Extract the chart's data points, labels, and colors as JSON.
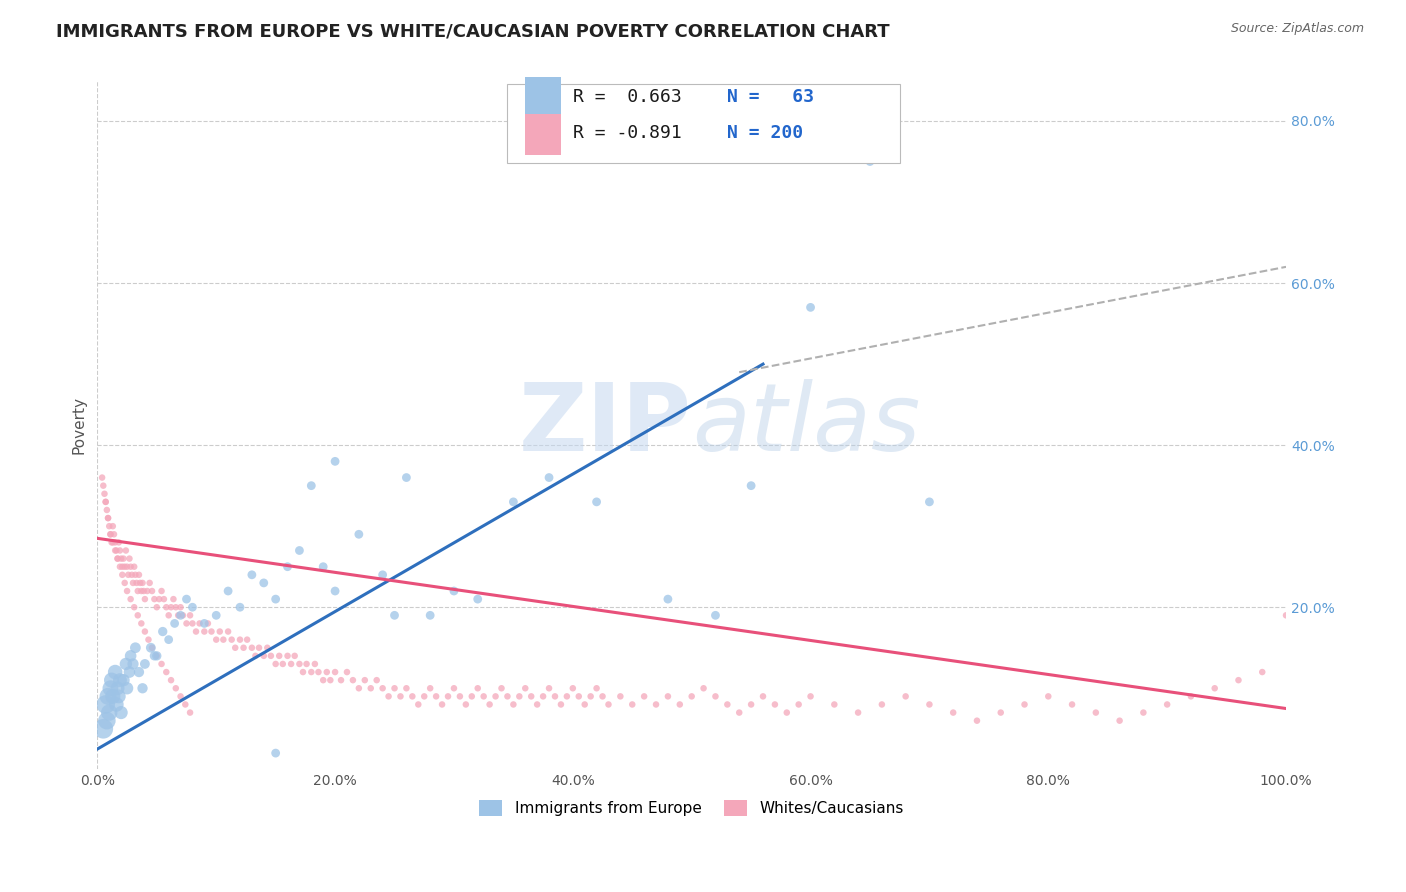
{
  "title": "IMMIGRANTS FROM EUROPE VS WHITE/CAUCASIAN POVERTY CORRELATION CHART",
  "source": "Source: ZipAtlas.com",
  "ylabel": "Poverty",
  "xlim": [
    0,
    1.0
  ],
  "ylim": [
    0,
    0.85
  ],
  "xticks": [
    0.0,
    0.2,
    0.4,
    0.6,
    0.8,
    1.0
  ],
  "xticklabels": [
    "0.0%",
    "20.0%",
    "40.0%",
    "60.0%",
    "80.0%",
    "100.0%"
  ],
  "ytick_positions": [
    0.2,
    0.4,
    0.6,
    0.8
  ],
  "yticklabels": [
    "20.0%",
    "40.0%",
    "60.0%",
    "80.0%"
  ],
  "legend_r1": "R =  0.663",
  "legend_n1": "N =   63",
  "legend_r2": "R = -0.891",
  "legend_n2": "N = 200",
  "blue_color": "#9dc3e6",
  "pink_color": "#f4a7ba",
  "blue_line_color": "#2e6fbd",
  "pink_line_color": "#e8507a",
  "dashed_line_color": "#b0b0b0",
  "title_fontsize": 13,
  "axis_fontsize": 11,
  "tick_fontsize": 10,
  "watermark_zip": "ZIP",
  "watermark_atlas": "atlas",
  "background_color": "#ffffff",
  "grid_color": "#cccccc",
  "blue_trendline": {
    "x": [
      0.0,
      0.56
    ],
    "y": [
      0.025,
      0.5
    ]
  },
  "dashed_trendline": {
    "x": [
      0.54,
      1.0
    ],
    "y": [
      0.49,
      0.62
    ]
  },
  "pink_trendline": {
    "x": [
      0.0,
      1.0
    ],
    "y": [
      0.285,
      0.075
    ]
  },
  "blue_scatter_x": [
    0.005,
    0.007,
    0.008,
    0.009,
    0.01,
    0.011,
    0.012,
    0.013,
    0.015,
    0.016,
    0.017,
    0.018,
    0.019,
    0.02,
    0.022,
    0.024,
    0.025,
    0.027,
    0.028,
    0.03,
    0.032,
    0.035,
    0.038,
    0.04,
    0.045,
    0.048,
    0.05,
    0.055,
    0.06,
    0.065,
    0.07,
    0.075,
    0.08,
    0.09,
    0.1,
    0.11,
    0.12,
    0.13,
    0.14,
    0.15,
    0.16,
    0.17,
    0.18,
    0.19,
    0.2,
    0.22,
    0.24,
    0.26,
    0.28,
    0.3,
    0.32,
    0.35,
    0.38,
    0.42,
    0.55,
    0.7,
    0.52,
    0.48,
    0.6,
    0.65,
    0.2,
    0.25,
    0.15
  ],
  "blue_scatter_y": [
    0.05,
    0.08,
    0.06,
    0.09,
    0.07,
    0.1,
    0.11,
    0.09,
    0.12,
    0.08,
    0.1,
    0.09,
    0.11,
    0.07,
    0.11,
    0.13,
    0.1,
    0.12,
    0.14,
    0.13,
    0.15,
    0.12,
    0.1,
    0.13,
    0.15,
    0.14,
    0.14,
    0.17,
    0.16,
    0.18,
    0.19,
    0.21,
    0.2,
    0.18,
    0.19,
    0.22,
    0.2,
    0.24,
    0.23,
    0.21,
    0.25,
    0.27,
    0.35,
    0.25,
    0.22,
    0.29,
    0.24,
    0.36,
    0.19,
    0.22,
    0.21,
    0.33,
    0.36,
    0.33,
    0.35,
    0.33,
    0.19,
    0.21,
    0.57,
    0.75,
    0.38,
    0.19,
    0.02
  ],
  "blue_scatter_sizes": [
    200,
    180,
    160,
    150,
    140,
    130,
    120,
    120,
    110,
    110,
    100,
    100,
    100,
    90,
    80,
    80,
    80,
    70,
    70,
    65,
    60,
    55,
    55,
    50,
    50,
    45,
    45,
    45,
    40,
    40,
    40,
    40,
    40,
    40,
    40,
    40,
    40,
    40,
    40,
    40,
    40,
    40,
    40,
    40,
    40,
    40,
    40,
    40,
    40,
    40,
    40,
    40,
    40,
    40,
    40,
    40,
    40,
    40,
    40,
    40,
    40,
    40,
    40
  ],
  "pink_scatter_x": [
    0.004,
    0.006,
    0.007,
    0.008,
    0.009,
    0.01,
    0.011,
    0.012,
    0.013,
    0.014,
    0.015,
    0.016,
    0.017,
    0.018,
    0.019,
    0.02,
    0.021,
    0.022,
    0.023,
    0.024,
    0.025,
    0.026,
    0.027,
    0.028,
    0.029,
    0.03,
    0.031,
    0.032,
    0.033,
    0.034,
    0.035,
    0.036,
    0.037,
    0.038,
    0.039,
    0.04,
    0.042,
    0.044,
    0.046,
    0.048,
    0.05,
    0.052,
    0.054,
    0.056,
    0.058,
    0.06,
    0.062,
    0.064,
    0.066,
    0.068,
    0.07,
    0.072,
    0.075,
    0.078,
    0.08,
    0.083,
    0.086,
    0.09,
    0.093,
    0.096,
    0.1,
    0.103,
    0.106,
    0.11,
    0.113,
    0.116,
    0.12,
    0.123,
    0.126,
    0.13,
    0.133,
    0.136,
    0.14,
    0.143,
    0.146,
    0.15,
    0.153,
    0.156,
    0.16,
    0.163,
    0.166,
    0.17,
    0.173,
    0.176,
    0.18,
    0.183,
    0.186,
    0.19,
    0.193,
    0.196,
    0.2,
    0.205,
    0.21,
    0.215,
    0.22,
    0.225,
    0.23,
    0.235,
    0.24,
    0.245,
    0.25,
    0.255,
    0.26,
    0.265,
    0.27,
    0.275,
    0.28,
    0.285,
    0.29,
    0.295,
    0.3,
    0.305,
    0.31,
    0.315,
    0.32,
    0.325,
    0.33,
    0.335,
    0.34,
    0.345,
    0.35,
    0.355,
    0.36,
    0.365,
    0.37,
    0.375,
    0.38,
    0.385,
    0.39,
    0.395,
    0.4,
    0.405,
    0.41,
    0.415,
    0.42,
    0.425,
    0.43,
    0.44,
    0.45,
    0.46,
    0.47,
    0.48,
    0.49,
    0.5,
    0.51,
    0.52,
    0.53,
    0.54,
    0.55,
    0.56,
    0.57,
    0.58,
    0.59,
    0.6,
    0.62,
    0.64,
    0.66,
    0.68,
    0.7,
    0.72,
    0.74,
    0.76,
    0.78,
    0.8,
    0.82,
    0.84,
    0.86,
    0.88,
    0.9,
    0.92,
    0.94,
    0.96,
    0.98,
    1.0,
    0.005,
    0.007,
    0.009,
    0.011,
    0.013,
    0.015,
    0.017,
    0.019,
    0.021,
    0.023,
    0.025,
    0.028,
    0.031,
    0.034,
    0.037,
    0.04,
    0.043,
    0.046,
    0.05,
    0.054,
    0.058,
    0.062,
    0.066,
    0.07,
    0.074,
    0.078
  ],
  "pink_scatter_y": [
    0.36,
    0.34,
    0.33,
    0.32,
    0.31,
    0.3,
    0.29,
    0.28,
    0.3,
    0.29,
    0.28,
    0.27,
    0.26,
    0.28,
    0.27,
    0.26,
    0.25,
    0.26,
    0.25,
    0.27,
    0.25,
    0.24,
    0.26,
    0.25,
    0.24,
    0.23,
    0.25,
    0.24,
    0.23,
    0.22,
    0.24,
    0.23,
    0.22,
    0.23,
    0.22,
    0.21,
    0.22,
    0.23,
    0.22,
    0.21,
    0.2,
    0.21,
    0.22,
    0.21,
    0.2,
    0.19,
    0.2,
    0.21,
    0.2,
    0.19,
    0.2,
    0.19,
    0.18,
    0.19,
    0.18,
    0.17,
    0.18,
    0.17,
    0.18,
    0.17,
    0.16,
    0.17,
    0.16,
    0.17,
    0.16,
    0.15,
    0.16,
    0.15,
    0.16,
    0.15,
    0.14,
    0.15,
    0.14,
    0.15,
    0.14,
    0.13,
    0.14,
    0.13,
    0.14,
    0.13,
    0.14,
    0.13,
    0.12,
    0.13,
    0.12,
    0.13,
    0.12,
    0.11,
    0.12,
    0.11,
    0.12,
    0.11,
    0.12,
    0.11,
    0.1,
    0.11,
    0.1,
    0.11,
    0.1,
    0.09,
    0.1,
    0.09,
    0.1,
    0.09,
    0.08,
    0.09,
    0.1,
    0.09,
    0.08,
    0.09,
    0.1,
    0.09,
    0.08,
    0.09,
    0.1,
    0.09,
    0.08,
    0.09,
    0.1,
    0.09,
    0.08,
    0.09,
    0.1,
    0.09,
    0.08,
    0.09,
    0.1,
    0.09,
    0.08,
    0.09,
    0.1,
    0.09,
    0.08,
    0.09,
    0.1,
    0.09,
    0.08,
    0.09,
    0.08,
    0.09,
    0.08,
    0.09,
    0.08,
    0.09,
    0.1,
    0.09,
    0.08,
    0.07,
    0.08,
    0.09,
    0.08,
    0.07,
    0.08,
    0.09,
    0.08,
    0.07,
    0.08,
    0.09,
    0.08,
    0.07,
    0.06,
    0.07,
    0.08,
    0.09,
    0.08,
    0.07,
    0.06,
    0.07,
    0.08,
    0.09,
    0.1,
    0.11,
    0.12,
    0.19,
    0.35,
    0.33,
    0.31,
    0.29,
    0.28,
    0.27,
    0.26,
    0.25,
    0.24,
    0.23,
    0.22,
    0.21,
    0.2,
    0.19,
    0.18,
    0.17,
    0.16,
    0.15,
    0.14,
    0.13,
    0.12,
    0.11,
    0.1,
    0.09,
    0.08,
    0.07
  ]
}
